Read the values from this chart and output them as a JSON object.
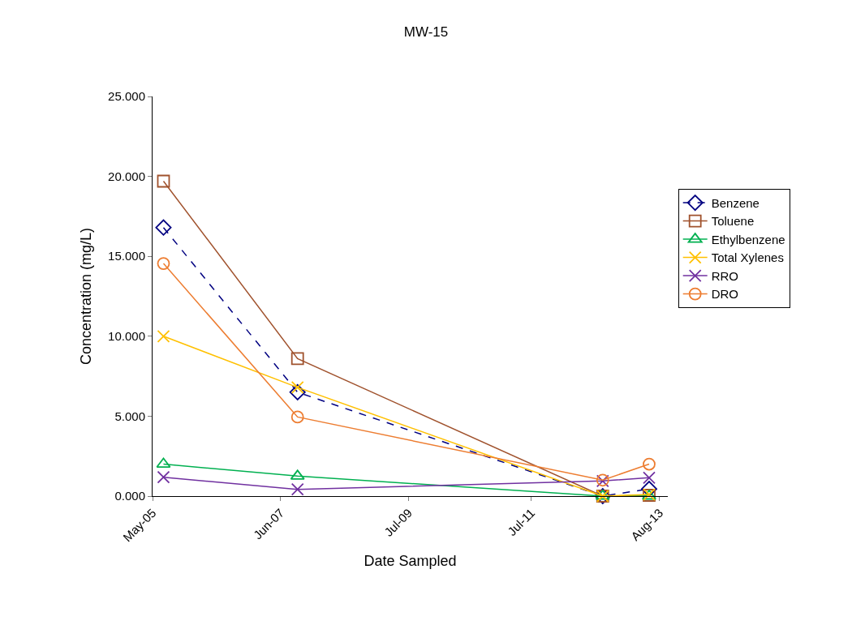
{
  "chart_data": {
    "type": "line",
    "title": "MW-15",
    "xlabel": "Date Sampled",
    "ylabel": "Concentration (mg/L)",
    "x": [
      "2005-07-05",
      "2007-09-10",
      "2012-08-28",
      "2013-05-31"
    ],
    "xlim": [
      "2005-05-01",
      "2013-09-19"
    ],
    "xticks": [
      {
        "value": "2005-05-01",
        "label": "May-05"
      },
      {
        "value": "2007-06-01",
        "label": "Jun-07"
      },
      {
        "value": "2009-07-01",
        "label": "Jul-09"
      },
      {
        "value": "2011-07-01",
        "label": "Jul-11"
      },
      {
        "value": "2013-08-01",
        "label": "Aug-13"
      }
    ],
    "ylim": [
      0,
      25
    ],
    "yticks": [
      {
        "value": 0,
        "label": "0.000"
      },
      {
        "value": 5,
        "label": "5.000"
      },
      {
        "value": 10,
        "label": "10.000"
      },
      {
        "value": 15,
        "label": "15.000"
      },
      {
        "value": 20,
        "label": "20.000"
      },
      {
        "value": 25,
        "label": "25.000"
      }
    ],
    "legend": "right",
    "series": [
      {
        "name": "Benzene",
        "color": "#000080",
        "marker": "diamond",
        "line_style": "dashed",
        "values": [
          16.8,
          6.5,
          0.0,
          0.45
        ]
      },
      {
        "name": "Toluene",
        "color": "#a0522d",
        "marker": "square",
        "values": [
          19.7,
          8.6,
          0.0,
          0.05
        ]
      },
      {
        "name": "Ethylbenzene",
        "color": "#00b050",
        "marker": "triangle",
        "values": [
          2.0,
          1.25,
          0.0,
          0.0
        ]
      },
      {
        "name": "Total Xylenes",
        "color": "#ffc000",
        "marker": "cross",
        "values": [
          10.0,
          6.8,
          0.0,
          0.1
        ]
      },
      {
        "name": "RRO",
        "color": "#7030a0",
        "marker": "cross",
        "values": [
          1.18,
          0.42,
          0.95,
          1.15
        ]
      },
      {
        "name": "DRO",
        "color": "#ed7d31",
        "marker": "circle",
        "values": [
          14.55,
          4.95,
          1.0,
          2.0
        ]
      }
    ]
  }
}
